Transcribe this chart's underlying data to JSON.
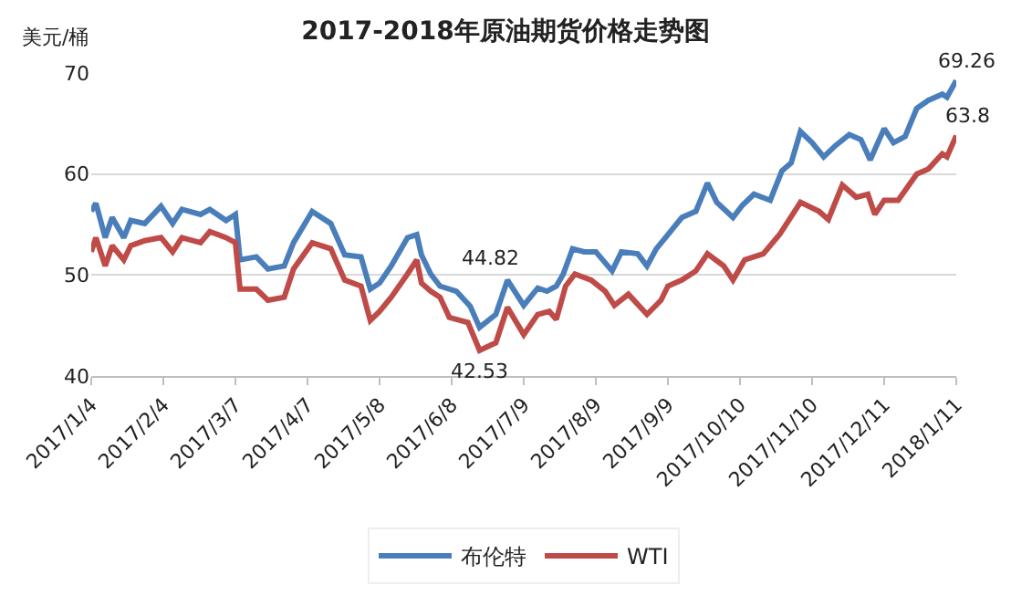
{
  "chart_data": {
    "type": "line",
    "title": "2017-2018年原油期货价格走势图",
    "ylabel": "美元/桶",
    "series": [
      {
        "name": "布伦特",
        "color": "#4a7ebb",
        "x": [
          "2017-01-04",
          "2017-01-06",
          "2017-01-10",
          "2017-01-13",
          "2017-01-18",
          "2017-01-21",
          "2017-01-27",
          "2017-02-03",
          "2017-02-08",
          "2017-02-12",
          "2017-02-20",
          "2017-02-24",
          "2017-03-03",
          "2017-03-07",
          "2017-03-09",
          "2017-03-16",
          "2017-03-21",
          "2017-03-28",
          "2017-04-01",
          "2017-04-09",
          "2017-04-17",
          "2017-04-23",
          "2017-04-30",
          "2017-05-04",
          "2017-05-08",
          "2017-05-13",
          "2017-05-20",
          "2017-05-24",
          "2017-05-26",
          "2017-05-30",
          "2017-06-03",
          "2017-06-10",
          "2017-06-16",
          "2017-06-20",
          "2017-06-27",
          "2017-07-02",
          "2017-07-09",
          "2017-07-15",
          "2017-07-19",
          "2017-07-23",
          "2017-07-26",
          "2017-07-30",
          "2017-08-04",
          "2017-08-09",
          "2017-08-16",
          "2017-08-20",
          "2017-08-27",
          "2017-08-31",
          "2017-09-04",
          "2017-09-09",
          "2017-09-15",
          "2017-09-21",
          "2017-09-26",
          "2017-09-30",
          "2017-10-07",
          "2017-10-11",
          "2017-10-16",
          "2017-10-23",
          "2017-10-28",
          "2017-11-01",
          "2017-11-05",
          "2017-11-10",
          "2017-11-15",
          "2017-11-20",
          "2017-11-26",
          "2017-12-01",
          "2017-12-05",
          "2017-12-11",
          "2017-12-15",
          "2017-12-20",
          "2017-12-25",
          "2017-12-30",
          "2018-01-05",
          "2018-01-07",
          "2018-01-11"
        ],
        "values": [
          56.3,
          57.1,
          53.7,
          55.7,
          53.7,
          55.4,
          55.1,
          56.8,
          55.1,
          56.5,
          56.0,
          56.5,
          55.4,
          56.0,
          51.5,
          51.8,
          50.6,
          50.9,
          53.2,
          56.3,
          55.1,
          52.0,
          51.8,
          48.6,
          49.2,
          50.9,
          53.7,
          54.0,
          52.0,
          50.1,
          48.9,
          48.4,
          46.9,
          44.82,
          46.1,
          49.5,
          47.0,
          48.7,
          48.4,
          48.9,
          50.1,
          52.6,
          52.3,
          52.3,
          50.4,
          52.3,
          52.1,
          50.9,
          52.6,
          54.0,
          55.7,
          56.3,
          59.1,
          57.2,
          55.7,
          56.9,
          58.0,
          57.4,
          60.3,
          61.1,
          64.2,
          63.1,
          61.7,
          62.8,
          63.9,
          63.4,
          61.4,
          64.5,
          63.1,
          63.7,
          66.5,
          67.3,
          67.9,
          67.6,
          69.26
        ]
      },
      {
        "name": "WTI",
        "color": "#be4b48",
        "x": [
          "2017-01-04",
          "2017-01-06",
          "2017-01-10",
          "2017-01-13",
          "2017-01-18",
          "2017-01-21",
          "2017-01-27",
          "2017-02-03",
          "2017-02-08",
          "2017-02-12",
          "2017-02-20",
          "2017-02-24",
          "2017-03-03",
          "2017-03-07",
          "2017-03-09",
          "2017-03-16",
          "2017-03-21",
          "2017-03-28",
          "2017-04-01",
          "2017-04-09",
          "2017-04-17",
          "2017-04-23",
          "2017-04-30",
          "2017-05-04",
          "2017-05-08",
          "2017-05-13",
          "2017-05-20",
          "2017-05-24",
          "2017-05-26",
          "2017-05-30",
          "2017-06-03",
          "2017-06-07",
          "2017-06-15",
          "2017-06-20",
          "2017-06-27",
          "2017-07-02",
          "2017-07-09",
          "2017-07-15",
          "2017-07-20",
          "2017-07-23",
          "2017-07-27",
          "2017-07-31",
          "2017-08-07",
          "2017-08-13",
          "2017-08-17",
          "2017-08-23",
          "2017-08-31",
          "2017-09-06",
          "2017-09-09",
          "2017-09-15",
          "2017-09-21",
          "2017-09-26",
          "2017-10-03",
          "2017-10-07",
          "2017-10-12",
          "2017-10-20",
          "2017-10-27",
          "2017-11-05",
          "2017-11-13",
          "2017-11-17",
          "2017-11-23",
          "2017-11-29",
          "2017-12-04",
          "2017-12-07",
          "2017-12-11",
          "2017-12-17",
          "2017-12-25",
          "2017-12-30",
          "2018-01-05",
          "2018-01-07",
          "2018-01-11"
        ],
        "values": [
          52.3,
          53.7,
          50.9,
          52.9,
          51.5,
          52.9,
          53.4,
          53.7,
          52.3,
          53.7,
          53.2,
          54.3,
          53.7,
          53.2,
          48.6,
          48.6,
          47.5,
          47.8,
          50.6,
          53.2,
          52.6,
          49.5,
          48.9,
          45.5,
          46.4,
          47.8,
          50.1,
          51.5,
          49.2,
          48.4,
          47.8,
          45.8,
          45.3,
          42.53,
          43.3,
          46.8,
          44.1,
          46.1,
          46.4,
          45.6,
          48.9,
          50.1,
          49.5,
          48.4,
          47.0,
          48.1,
          46.1,
          47.5,
          48.9,
          49.5,
          50.4,
          52.1,
          50.9,
          49.5,
          51.5,
          52.1,
          54.0,
          57.2,
          56.3,
          55.5,
          58.9,
          57.7,
          58.0,
          56.0,
          57.4,
          57.4,
          60.0,
          60.5,
          62.0,
          61.7,
          63.8
        ]
      }
    ],
    "annotations": [
      {
        "text": "44.82",
        "x": "2017-06-20",
        "y": 44.82
      },
      {
        "text": "42.53",
        "x": "2017-06-20",
        "y": 42.53
      },
      {
        "text": "69.26",
        "x": "2018-01-11",
        "y": 69.26
      },
      {
        "text": "63.8",
        "x": "2018-01-11",
        "y": 63.8
      }
    ],
    "xlim": [
      "2017-01-04",
      "2018-01-11"
    ],
    "xticks": [
      {
        "value": "2017-01-04",
        "label": "2017/1/4"
      },
      {
        "value": "2017-02-04",
        "label": "2017/2/4"
      },
      {
        "value": "2017-03-07",
        "label": "2017/3/7"
      },
      {
        "value": "2017-04-07",
        "label": "2017/4/7"
      },
      {
        "value": "2017-05-08",
        "label": "2017/5/8"
      },
      {
        "value": "2017-06-08",
        "label": "2017/6/8"
      },
      {
        "value": "2017-07-09",
        "label": "2017/7/9"
      },
      {
        "value": "2017-08-09",
        "label": "2017/8/9"
      },
      {
        "value": "2017-09-09",
        "label": "2017/9/9"
      },
      {
        "value": "2017-10-10",
        "label": "2017/10/10"
      },
      {
        "value": "2017-11-10",
        "label": "2017/11/10"
      },
      {
        "value": "2017-12-11",
        "label": "2017/12/11"
      },
      {
        "value": "2018-01-11",
        "label": "2018/1/11"
      }
    ],
    "ylim": [
      40,
      70
    ],
    "yticks": [
      40,
      50,
      60,
      70
    ],
    "grid": "y",
    "legend": "bottom",
    "line_style": "solid"
  }
}
